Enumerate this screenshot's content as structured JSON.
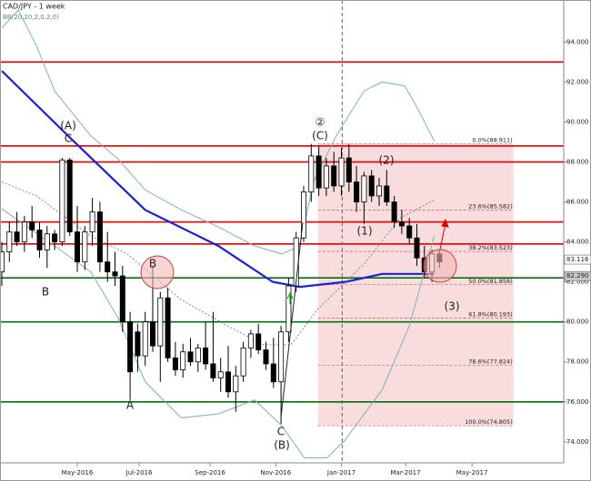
{
  "chart_data": {
    "type": "candlestick",
    "title": "CAD/JPY - 1 week",
    "legend_text": "BB(20,20,2,0,2,0)",
    "xlim": [
      -0.241,
      74.458
    ],
    "ylim": [
      72.95,
      96.1
    ],
    "xticks": [
      {
        "value": 10,
        "label": "May-2016"
      },
      {
        "value": 18.2,
        "label": "Jul-2016"
      },
      {
        "value": 27.6,
        "label": "Sep-2016"
      },
      {
        "value": 36.3,
        "label": "Nov-2016"
      },
      {
        "value": 45,
        "label": "Jan-2017"
      },
      {
        "value": 53.5,
        "label": "Mar-2017"
      },
      {
        "value": 62.3,
        "label": "May-2017"
      }
    ],
    "yticks": [
      {
        "value": 74,
        "label": "74.000"
      },
      {
        "value": 76,
        "label": "76.000"
      },
      {
        "value": 78,
        "label": "78.000"
      },
      {
        "value": 80,
        "label": "80.000"
      },
      {
        "value": 82,
        "label": "82.000"
      },
      {
        "value": 84,
        "label": "84.000"
      },
      {
        "value": 86,
        "label": "86.000"
      },
      {
        "value": 88,
        "label": "88.000"
      },
      {
        "value": 90,
        "label": "90.000"
      },
      {
        "value": 92,
        "label": "92.000"
      },
      {
        "value": 94,
        "label": "94.000"
      }
    ],
    "up_color": "#ffffff",
    "down_color": "#000000",
    "open": [
      82.5,
      83.5,
      84.5,
      84.0,
      85.0,
      84.6,
      83.6,
      84.4,
      84.0,
      88.1,
      84.5,
      83.0,
      84.5,
      85.5,
      83.0,
      82.5,
      82.3,
      80.0,
      79.5,
      78.3,
      80.0,
      78.8,
      81.2,
      78.2,
      77.6,
      78.5,
      78.0,
      78.7,
      77.9,
      77.2,
      77.5,
      76.5,
      77.3,
      78.7,
      79.4,
      78.6,
      77.9,
      77.0,
      79.5,
      81.8,
      84.2,
      86.5,
      88.3,
      86.7,
      87.8,
      86.8,
      88.2,
      87.0,
      86.0,
      87.3,
      86.3,
      86.8,
      86.0,
      85.0,
      84.8,
      84.2,
      83.2,
      82.5,
      83.4
    ],
    "high": [
      84.0,
      85.0,
      85.5,
      85.3,
      85.8,
      85.0,
      84.8,
      84.6,
      88.2,
      88.2,
      85.8,
      84.8,
      86.2,
      86.0,
      84.5,
      83.5,
      82.8,
      80.5,
      79.9,
      80.5,
      82.8,
      81.5,
      81.7,
      79.0,
      78.9,
      79.2,
      78.9,
      80.0,
      80.5,
      78.2,
      78.8,
      77.8,
      79.0,
      79.6,
      79.9,
      79.0,
      79.2,
      79.8,
      82.2,
      84.5,
      86.8,
      88.9,
      88.8,
      88.2,
      88.5,
      88.7,
      88.9,
      87.8,
      87.5,
      87.6,
      87.2,
      87.6,
      86.3,
      85.6,
      85.2,
      84.9,
      83.8,
      83.6,
      83.6
    ],
    "low": [
      81.8,
      83.0,
      83.8,
      83.5,
      84.2,
      83.2,
      82.7,
      83.6,
      83.8,
      84.3,
      82.5,
      82.6,
      83.8,
      82.5,
      82.0,
      81.8,
      79.5,
      76.1,
      77.5,
      77.8,
      78.5,
      77.0,
      78.0,
      77.3,
      77.2,
      77.8,
      77.5,
      77.6,
      77.0,
      76.5,
      76.2,
      75.5,
      77.0,
      78.2,
      78.4,
      77.6,
      76.7,
      74.9,
      79.0,
      81.5,
      84.0,
      86.0,
      86.3,
      86.3,
      86.5,
      86.3,
      86.5,
      85.5,
      84.9,
      86.0,
      85.8,
      85.8,
      84.7,
      84.4,
      83.9,
      82.8,
      82.2,
      82.0,
      82.7
    ],
    "close": [
      83.5,
      84.5,
      84.0,
      85.0,
      84.6,
      83.6,
      84.4,
      84.0,
      88.1,
      84.5,
      83.0,
      84.5,
      85.5,
      83.0,
      82.5,
      82.3,
      80.0,
      77.5,
      78.3,
      80.0,
      78.8,
      81.2,
      78.2,
      77.6,
      78.5,
      78.0,
      78.7,
      77.9,
      77.2,
      77.5,
      76.5,
      77.3,
      78.7,
      79.4,
      78.6,
      77.9,
      77.0,
      79.5,
      81.8,
      84.2,
      86.5,
      88.3,
      86.7,
      87.8,
      86.8,
      88.2,
      87.0,
      86.0,
      87.3,
      86.3,
      86.8,
      86.0,
      85.0,
      84.8,
      84.2,
      83.2,
      82.5,
      83.4,
      83.0
    ],
    "lines": [
      {
        "color": "#1a22d6",
        "x": [
          0,
          8.8,
          19,
          28.7,
          35.9,
          39.5,
          45.5,
          50.4,
          57.3
        ],
        "values": [
          92.55,
          89.3,
          85.6,
          83.8,
          82.0,
          81.75,
          82.0,
          82.4,
          82.4
        ]
      },
      {
        "color": "#7fb3b3",
        "x": [
          0,
          2.2,
          4.6,
          7,
          11.8,
          15.4,
          19,
          23.8,
          28.7,
          33.5,
          37.1,
          39.5,
          41.3,
          44.3,
          48,
          50.4,
          53.4,
          55.2,
          57.3
        ],
        "values": [
          94.7,
          95.6,
          93.8,
          91.55,
          89.3,
          88.15,
          86.6,
          85.6,
          84.75,
          83.8,
          83.4,
          83.8,
          87.0,
          89.3,
          91.55,
          92.0,
          91.8,
          90.6,
          89.05
        ]
      },
      {
        "color": "#7fb3b3",
        "x": [
          0,
          7,
          11.8,
          15.4,
          19,
          23.8,
          28.7,
          33.5,
          37.1,
          40.1,
          43.1,
          45.5,
          50.4,
          54,
          57.3
        ],
        "values": [
          85.65,
          83.8,
          82.5,
          80.2,
          77.0,
          75.2,
          75.4,
          76.1,
          74.8,
          73.2,
          73.2,
          74.1,
          76.6,
          79.8,
          84.3
        ]
      },
      {
        "color": "#888888",
        "dash": true,
        "x": [
          0,
          4.6,
          11.8,
          16.6,
          23.8,
          29.9,
          34.7,
          38.3,
          41.9,
          48,
          52.8,
          57.3
        ],
        "values": [
          87.0,
          86.3,
          84.3,
          83.4,
          81.1,
          79.8,
          78.85,
          78.85,
          80.65,
          82.9,
          85.2,
          86.1
        ]
      }
    ],
    "hlines": [
      {
        "value": 93.0,
        "color": "#e00000"
      },
      {
        "value": 88.8,
        "color": "#e00000"
      },
      {
        "value": 88.0,
        "color": "#e00000"
      },
      {
        "value": 85.0,
        "color": "#e00000"
      },
      {
        "value": 83.9,
        "color": "#e00000"
      },
      {
        "value": 82.2,
        "color": "#00700a"
      },
      {
        "value": 80.0,
        "color": "#00700a"
      },
      {
        "value": 76.0,
        "color": "#00700a"
      }
    ],
    "vline": 45.1,
    "fib": {
      "x": [
        41.9,
        67.8
      ],
      "color": "#f6d3d6",
      "levels": [
        {
          "value": 88.911,
          "label": "0.0%(88.911)"
        },
        {
          "value": 85.582,
          "label": "23.6%(85.582)"
        },
        {
          "value": 83.523,
          "label": "38.2%(83.523)"
        },
        {
          "value": 81.858,
          "label": "50.0%(81.858)"
        },
        {
          "value": 80.193,
          "label": "61.8%(80.193)"
        },
        {
          "value": 77.824,
          "label": "78.6%(77.824)"
        },
        {
          "value": 74.805,
          "label": "100.0%(74.805)"
        }
      ]
    },
    "price_labels": [
      {
        "value": 83.116,
        "label": "83.116",
        "color": "#ffffff"
      },
      {
        "value": 82.29,
        "label": "82.290",
        "color": "#c8c8c8"
      }
    ],
    "annotations": [
      "(A)",
      "C",
      "B",
      "A",
      "B",
      "②",
      "(C)",
      "(2)",
      "(1)",
      "(3)",
      "C",
      "(B)"
    ]
  }
}
